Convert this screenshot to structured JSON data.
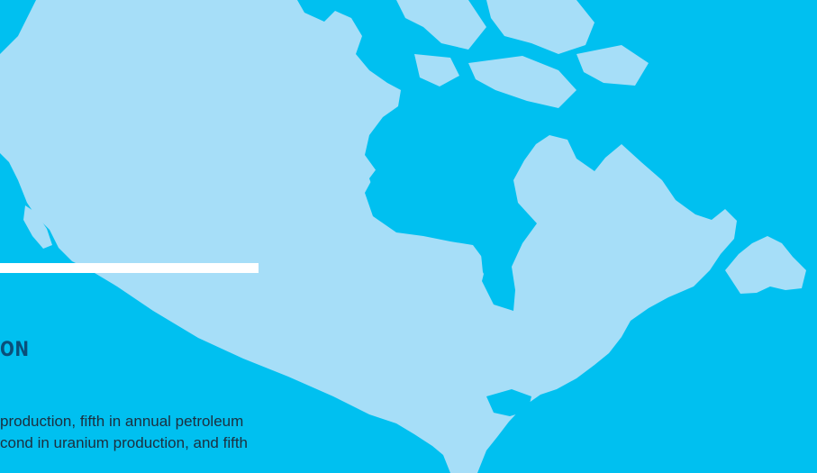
{
  "colors": {
    "background": "#00c0f0",
    "map_fill": "#a6def8",
    "bar": "#ffffff",
    "heading": "#0a4f7a",
    "body_text": "#1c2f3f"
  },
  "map": {
    "icon": "canada-map-icon"
  },
  "heading": {
    "text": "ON"
  },
  "body": {
    "lines": [
      "production, fifth in annual petroleum",
      "cond in uranium production, and fifth"
    ]
  }
}
